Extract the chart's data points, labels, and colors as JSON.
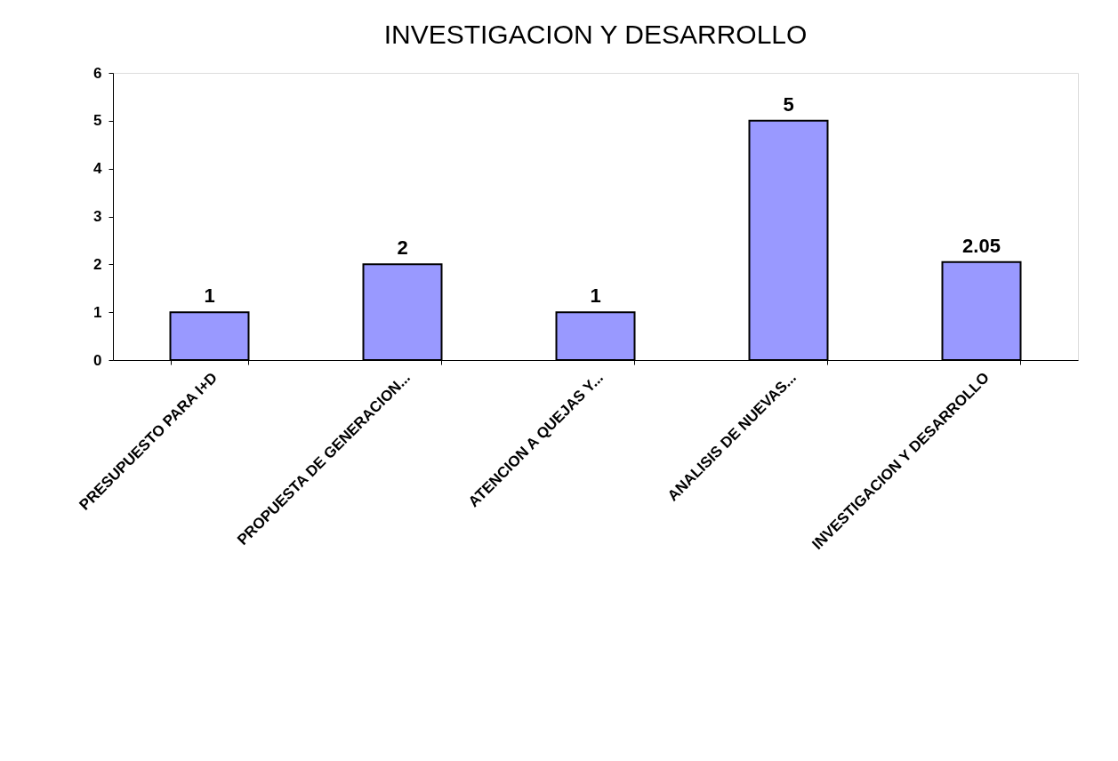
{
  "chart_data": {
    "type": "bar",
    "title": "INVESTIGACION Y DESARROLLO",
    "categories": [
      "PRESUPUESTO PARA I+D",
      "PROPUESTA DE GENERACION...",
      "ATENCION A QUEJAS Y...",
      "ANALISIS DE NUEVAS...",
      "INVESTIGACION Y DESARROLLO"
    ],
    "values": [
      1,
      2,
      1,
      5,
      2.05
    ],
    "color": "#9999ff",
    "ylim": [
      0,
      6
    ],
    "yticks": [
      0,
      1,
      2,
      3,
      4,
      5,
      6
    ],
    "data_labels": true,
    "grid": false
  }
}
